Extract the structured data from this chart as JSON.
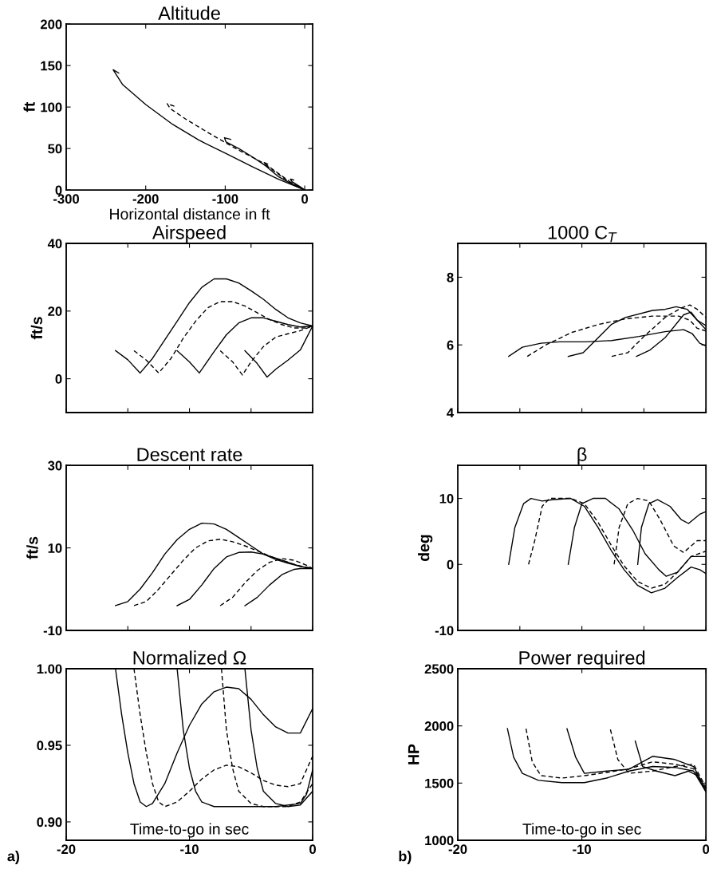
{
  "chart_data": [
    {
      "type": "line",
      "title": "Altitude",
      "xlabel": "Horizontal distance in ft",
      "ylabel": "ft",
      "xlim": [
        -300,
        10
      ],
      "xticks": [
        -300,
        -200,
        -100,
        0
      ],
      "ylim": [
        0,
        200
      ],
      "yticks": [
        0,
        50,
        100,
        150,
        200
      ],
      "grid": false,
      "series": [
        {
          "color": "#000000",
          "line_style": "solid",
          "x": [
            -234,
            -241,
            -229,
            -200,
            -166,
            -133,
            -99,
            -66,
            -33,
            0
          ],
          "values": [
            141,
            145,
            127,
            103,
            79,
            60,
            44,
            28,
            13,
            0
          ]
        },
        {
          "color": "#000000",
          "line_style": "dashed",
          "x": [
            -164,
            -173,
            -169,
            -149,
            -116,
            -83,
            -49,
            -16,
            0
          ],
          "values": [
            101,
            104,
            98,
            85,
            66,
            48,
            31,
            8,
            0
          ]
        },
        {
          "color": "#000000",
          "line_style": "solid",
          "x": [
            -93,
            -101,
            -99,
            -83,
            -66,
            -49,
            -33,
            -16,
            0
          ],
          "values": [
            61,
            63,
            58,
            50,
            40,
            29,
            16,
            7,
            0
          ]
        },
        {
          "color": "#000000",
          "line_style": "dashed",
          "x": [
            -46,
            -51,
            -49,
            -39,
            -23,
            0
          ],
          "values": [
            31,
            33,
            30,
            23,
            12,
            0
          ]
        },
        {
          "color": "#000000",
          "line_style": "solid",
          "x": [
            -14,
            -18,
            -16,
            -6,
            0
          ],
          "values": [
            12,
            13,
            10,
            4,
            0
          ]
        }
      ]
    },
    {
      "type": "line",
      "title": "Airspeed",
      "ylabel": "ft/s",
      "xlim": [
        -20,
        0
      ],
      "xticks": [
        -20,
        -15,
        -10,
        -5,
        0
      ],
      "ylim": [
        -10,
        40
      ],
      "yticks": [
        0,
        20,
        40
      ],
      "tick_labels": "y",
      "grid": false,
      "series": [
        {
          "color": "#000000",
          "line_style": "solid",
          "x": [
            -16,
            -15,
            -14,
            -13,
            -12,
            -11,
            -10,
            -9,
            -8,
            -7,
            -6,
            -5,
            -4,
            -3,
            -2,
            -1,
            0
          ],
          "values": [
            8.3,
            5.6,
            1.7,
            6,
            11.5,
            17,
            22.5,
            27,
            29.5,
            29.5,
            28.3,
            26,
            23.5,
            20.5,
            18,
            16.5,
            15.6
          ]
        },
        {
          "color": "#000000",
          "line_style": "dashed",
          "x": [
            -14.5,
            -13.5,
            -12.5,
            -11.5,
            -10.5,
            -9.5,
            -8.5,
            -7.5,
            -6.5,
            -5.5,
            -4.5,
            -3.5,
            -2.5,
            -1.5,
            -0.5,
            0
          ],
          "values": [
            8.3,
            5.5,
            1.7,
            6,
            12,
            17,
            21,
            22.8,
            22.8,
            21.5,
            19.5,
            17.5,
            16,
            15,
            15,
            15.6
          ]
        },
        {
          "color": "#000000",
          "line_style": "solid",
          "x": [
            -11,
            -10,
            -9.2,
            -8,
            -7,
            -6,
            -5,
            -4,
            -3,
            -2,
            -1,
            0
          ],
          "values": [
            8.3,
            5,
            1.7,
            8,
            13,
            16.5,
            18,
            18,
            17,
            16,
            15.3,
            15.6
          ]
        },
        {
          "color": "#000000",
          "line_style": "dashed",
          "x": [
            -7.5,
            -6.5,
            -5.7,
            -5,
            -4,
            -3,
            -2,
            -1,
            0
          ],
          "values": [
            8.3,
            5,
            1.1,
            5,
            9.5,
            12.3,
            13.3,
            14.2,
            15.6
          ]
        },
        {
          "color": "#000000",
          "line_style": "solid",
          "x": [
            -5.5,
            -4.5,
            -3.7,
            -3,
            -2,
            -1,
            0
          ],
          "values": [
            8.3,
            4.5,
            0.5,
            2.8,
            5.5,
            8.5,
            15.6
          ]
        }
      ]
    },
    {
      "type": "line",
      "title": "1000 C$_{T}$",
      "xlim": [
        -20,
        0
      ],
      "xticks": [
        -20,
        -15,
        -10,
        -5,
        0
      ],
      "ylim": [
        4,
        9
      ],
      "yticks": [
        4,
        6,
        8
      ],
      "tick_labels": "y",
      "grid": false,
      "series": [
        {
          "color": "#000000",
          "line_style": "solid",
          "x": [
            -15.9,
            -14.8,
            -13.3,
            -11.8,
            -9.7,
            -7.6,
            -5.4,
            -3.3,
            -1.8,
            -1.1,
            -0.5,
            0
          ],
          "values": [
            5.66,
            5.93,
            6.05,
            6.09,
            6.09,
            6.13,
            6.25,
            6.39,
            6.45,
            6.33,
            6.05,
            5.97
          ]
        },
        {
          "color": "#000000",
          "line_style": "dashed",
          "x": [
            -14.4,
            -12.9,
            -10.8,
            -8.6,
            -6.5,
            -4.3,
            -2.2,
            -1.3,
            -0.7,
            0
          ],
          "values": [
            5.66,
            6.0,
            6.37,
            6.61,
            6.77,
            6.85,
            6.85,
            6.73,
            6.49,
            6.41
          ]
        },
        {
          "color": "#000000",
          "line_style": "solid",
          "x": [
            -11.1,
            -9.9,
            -8.8,
            -7.6,
            -6.5,
            -4.3,
            -3.3,
            -2.4,
            -1.5,
            -0.7,
            0
          ],
          "values": [
            5.66,
            5.77,
            6.17,
            6.61,
            6.81,
            7.02,
            7.05,
            7.13,
            7.05,
            6.73,
            6.57
          ]
        },
        {
          "color": "#000000",
          "line_style": "dashed",
          "x": [
            -7.6,
            -6.3,
            -5.0,
            -3.3,
            -2.0,
            -1.3,
            -0.7,
            0
          ],
          "values": [
            5.66,
            5.77,
            6.25,
            6.81,
            7.09,
            7.18,
            7.05,
            6.81
          ]
        },
        {
          "color": "#000000",
          "line_style": "solid",
          "x": [
            -5.6,
            -4.5,
            -3.3,
            -1.8,
            -1.2,
            -0.7,
            0
          ],
          "values": [
            5.66,
            5.85,
            6.21,
            6.89,
            6.97,
            6.73,
            6.45
          ]
        }
      ]
    },
    {
      "type": "line",
      "title": "Descent rate",
      "ylabel": "ft/s",
      "xlim": [
        -20,
        0
      ],
      "xticks": [
        -20,
        -15,
        -10,
        -5,
        0
      ],
      "ylim": [
        -10,
        30
      ],
      "yticks": [
        -10,
        10,
        30
      ],
      "tick_labels": "y",
      "grid": false,
      "series": [
        {
          "color": "#000000",
          "line_style": "solid",
          "x": [
            -16,
            -15,
            -14,
            -13,
            -12,
            -11,
            -10,
            -9,
            -8,
            -7,
            -6,
            -5,
            -4,
            -3,
            -2,
            -1,
            0
          ],
          "values": [
            -4,
            -3,
            0,
            4,
            8.5,
            12,
            14.5,
            16,
            15.8,
            14.5,
            12.5,
            10.5,
            8.5,
            7.2,
            6.3,
            5.5,
            5
          ]
        },
        {
          "color": "#000000",
          "line_style": "dashed",
          "x": [
            -14.5,
            -13.5,
            -12.5,
            -11.5,
            -10.5,
            -9.5,
            -8.5,
            -7.5,
            -6.5,
            -5.5,
            -4.5,
            -3.5,
            -2.5,
            -1.5,
            -0.5,
            0
          ],
          "values": [
            -4,
            -3,
            0,
            3.5,
            7,
            10,
            11.7,
            12.1,
            11.5,
            10.5,
            9.3,
            8,
            7,
            6,
            5.3,
            5
          ]
        },
        {
          "color": "#000000",
          "line_style": "solid",
          "x": [
            -11,
            -10,
            -9,
            -8,
            -7,
            -6,
            -5,
            -4,
            -3,
            -2,
            -1,
            0
          ],
          "values": [
            -4,
            -2.5,
            1,
            5,
            7.8,
            8.9,
            9,
            8.5,
            7.5,
            6.5,
            5.5,
            5
          ]
        },
        {
          "color": "#000000",
          "line_style": "dashed",
          "x": [
            -7.5,
            -6.5,
            -5.5,
            -4.5,
            -3.5,
            -2.5,
            -1.5,
            -0.5,
            0
          ],
          "values": [
            -4,
            -2,
            1.5,
            4.5,
            6.5,
            7.4,
            7,
            5.8,
            5
          ]
        },
        {
          "color": "#000000",
          "line_style": "solid",
          "x": [
            -5.5,
            -4.5,
            -3.5,
            -2.5,
            -1.5,
            -1,
            0
          ],
          "values": [
            -4,
            -2,
            1,
            3.5,
            4.8,
            5,
            5
          ]
        }
      ]
    },
    {
      "type": "line",
      "title": "β",
      "ylabel": "deg",
      "xlim": [
        -20,
        0
      ],
      "xticks": [
        -20,
        -15,
        -10,
        -5,
        0
      ],
      "ylim": [
        -10,
        15
      ],
      "yticks": [
        -10,
        0,
        10
      ],
      "tick_labels": "y",
      "grid": false,
      "series": [
        {
          "color": "#000000",
          "line_style": "solid",
          "x": [
            -15.9,
            -15.4,
            -14.7,
            -14.1,
            -13.2,
            -12.4,
            -10.9,
            -9.8,
            -8.7,
            -7.6,
            -6.6,
            -5.5,
            -4.4,
            -3.3,
            -2.3,
            -1.2,
            -0.5,
            0
          ],
          "values": [
            0,
            5.6,
            9.2,
            10,
            9.6,
            9.8,
            10,
            8.8,
            5.6,
            2.0,
            -0.8,
            -3.2,
            -4.3,
            -3.6,
            -2,
            -0.4,
            -0.8,
            -1.4
          ]
        },
        {
          "color": "#000000",
          "line_style": "dashed",
          "x": [
            -14.3,
            -13.8,
            -13.2,
            -12.6,
            -10.9,
            -9.8,
            -8.7,
            -7.6,
            -6.6,
            -5.5,
            -4.4,
            -3.3,
            -2.3,
            -1.2,
            0
          ],
          "values": [
            0,
            3.6,
            8.8,
            10,
            10,
            9.2,
            6.4,
            2.8,
            -0.2,
            -2.6,
            -3.6,
            -3,
            -1.2,
            1.2,
            2.0
          ]
        },
        {
          "color": "#000000",
          "line_style": "solid",
          "x": [
            -11.1,
            -10.6,
            -10.0,
            -9.1,
            -8.1,
            -7.0,
            -5.9,
            -4.9,
            -3.8,
            -3.2,
            -2.3,
            -1.2,
            0
          ],
          "values": [
            0,
            5.6,
            9.2,
            10,
            10,
            8.4,
            5.2,
            1.6,
            -0.8,
            -1.8,
            -1.2,
            1.2,
            1.2
          ]
        },
        {
          "color": "#000000",
          "line_style": "dashed",
          "x": [
            -7.4,
            -7.0,
            -6.3,
            -5.5,
            -4.6,
            -3.7,
            -2.6,
            -1.8,
            -0.7,
            0
          ],
          "values": [
            0,
            5.6,
            9.2,
            10,
            9.6,
            6.8,
            2.8,
            1.8,
            3.6,
            3.6
          ]
        },
        {
          "color": "#000000",
          "line_style": "solid",
          "x": [
            -5.5,
            -5.2,
            -4.6,
            -3.9,
            -2.9,
            -2.0,
            -1.4,
            -0.5,
            0
          ],
          "values": [
            0,
            5.6,
            9.2,
            9.8,
            8.8,
            6.8,
            6.2,
            7.6,
            8.0
          ]
        }
      ]
    },
    {
      "type": "line",
      "title": "Normalized Ω",
      "xlabel": "Time-to-go in sec",
      "xlim": [
        -20,
        0
      ],
      "xticks": [
        -20,
        -10,
        0
      ],
      "ylim": [
        0.888,
        1.0
      ],
      "yticks": [
        {
          "value": 0.9,
          "label": "0.90"
        },
        {
          "value": 0.95,
          "label": "0.95"
        },
        {
          "value": 1.0,
          "label": "1.00"
        }
      ],
      "grid": false,
      "annotations": [
        "a)"
      ],
      "series": [
        {
          "color": "#000000",
          "line_style": "solid",
          "x": [
            -16,
            -15.5,
            -15,
            -14.5,
            -14,
            -13.5,
            -13,
            -12,
            -11,
            -10,
            -9,
            -8,
            -7,
            -6,
            -5,
            -4,
            -3,
            -2,
            -1,
            0
          ],
          "values": [
            1.0,
            0.97,
            0.945,
            0.925,
            0.913,
            0.91,
            0.912,
            0.925,
            0.945,
            0.963,
            0.977,
            0.985,
            0.988,
            0.987,
            0.98,
            0.97,
            0.962,
            0.958,
            0.958,
            0.974
          ]
        },
        {
          "color": "#000000",
          "line_style": "dashed",
          "x": [
            -14.5,
            -14,
            -13.5,
            -13,
            -12.5,
            -12,
            -11,
            -10,
            -9,
            -8,
            -7,
            -6,
            -5,
            -4,
            -3,
            -2,
            -1,
            0
          ],
          "values": [
            1.0,
            0.97,
            0.945,
            0.925,
            0.913,
            0.91,
            0.913,
            0.92,
            0.928,
            0.934,
            0.937,
            0.936,
            0.932,
            0.927,
            0.924,
            0.923,
            0.925,
            0.943
          ]
        },
        {
          "color": "#000000",
          "line_style": "solid",
          "x": [
            -11,
            -10.5,
            -10,
            -9.5,
            -9,
            -8,
            -5,
            -3,
            -1,
            -0.5,
            0
          ],
          "values": [
            1.0,
            0.96,
            0.935,
            0.92,
            0.913,
            0.91,
            0.91,
            0.91,
            0.912,
            0.918,
            0.934
          ]
        },
        {
          "color": "#000000",
          "line_style": "dashed",
          "x": [
            -7.4,
            -7,
            -6.5,
            -6,
            -5,
            -4,
            -2,
            -1,
            0
          ],
          "values": [
            1.0,
            0.96,
            0.935,
            0.92,
            0.912,
            0.91,
            0.91,
            0.913,
            0.925
          ]
        },
        {
          "color": "#000000",
          "line_style": "solid",
          "x": [
            -5.5,
            -5,
            -4.5,
            -4,
            -3,
            -2,
            -1,
            0
          ],
          "values": [
            1.0,
            0.96,
            0.935,
            0.92,
            0.912,
            0.91,
            0.911,
            0.92
          ]
        }
      ]
    },
    {
      "type": "line",
      "title": "Power required",
      "xlabel": "Time-to-go in sec",
      "ylabel": "HP",
      "xlim": [
        -20,
        0
      ],
      "xticks": [
        -20,
        -10,
        0
      ],
      "ylim": [
        1000,
        2500
      ],
      "yticks": [
        1000,
        1500,
        2000,
        2500
      ],
      "grid": false,
      "annotations": [
        "b)"
      ],
      "series": [
        {
          "color": "#000000",
          "line_style": "solid",
          "x": [
            -16.0,
            -15.5,
            -14.8,
            -13.5,
            -11.6,
            -9.8,
            -8.0,
            -6.2,
            -4.3,
            -2.5,
            -1.0,
            0
          ],
          "values": [
            1976,
            1726,
            1585,
            1524,
            1504,
            1504,
            1544,
            1605,
            1645,
            1637,
            1605,
            1423
          ]
        },
        {
          "color": "#000000",
          "line_style": "dashed",
          "x": [
            -14.5,
            -14.0,
            -13.3,
            -11.6,
            -9.8,
            -8.0,
            -6.2,
            -4.3,
            -2.5,
            -1.0,
            0
          ],
          "values": [
            1976,
            1686,
            1565,
            1544,
            1565,
            1593,
            1625,
            1686,
            1665,
            1625,
            1443
          ]
        },
        {
          "color": "#000000",
          "line_style": "solid",
          "x": [
            -11.2,
            -10.5,
            -9.8,
            -8.0,
            -6.2,
            -4.3,
            -2.5,
            -1.0,
            0
          ],
          "values": [
            1976,
            1726,
            1585,
            1605,
            1621,
            1734,
            1706,
            1645,
            1443
          ]
        },
        {
          "color": "#000000",
          "line_style": "dashed",
          "x": [
            -7.7,
            -7.1,
            -6.2,
            -4.3,
            -2.5,
            -1.0,
            0
          ],
          "values": [
            1968,
            1706,
            1585,
            1605,
            1645,
            1665,
            1463
          ]
        },
        {
          "color": "#000000",
          "line_style": "solid",
          "x": [
            -5.7,
            -5.1,
            -4.0,
            -2.5,
            -1.4,
            -0.7,
            0
          ],
          "values": [
            1867,
            1645,
            1605,
            1565,
            1605,
            1565,
            1423
          ]
        }
      ]
    }
  ]
}
